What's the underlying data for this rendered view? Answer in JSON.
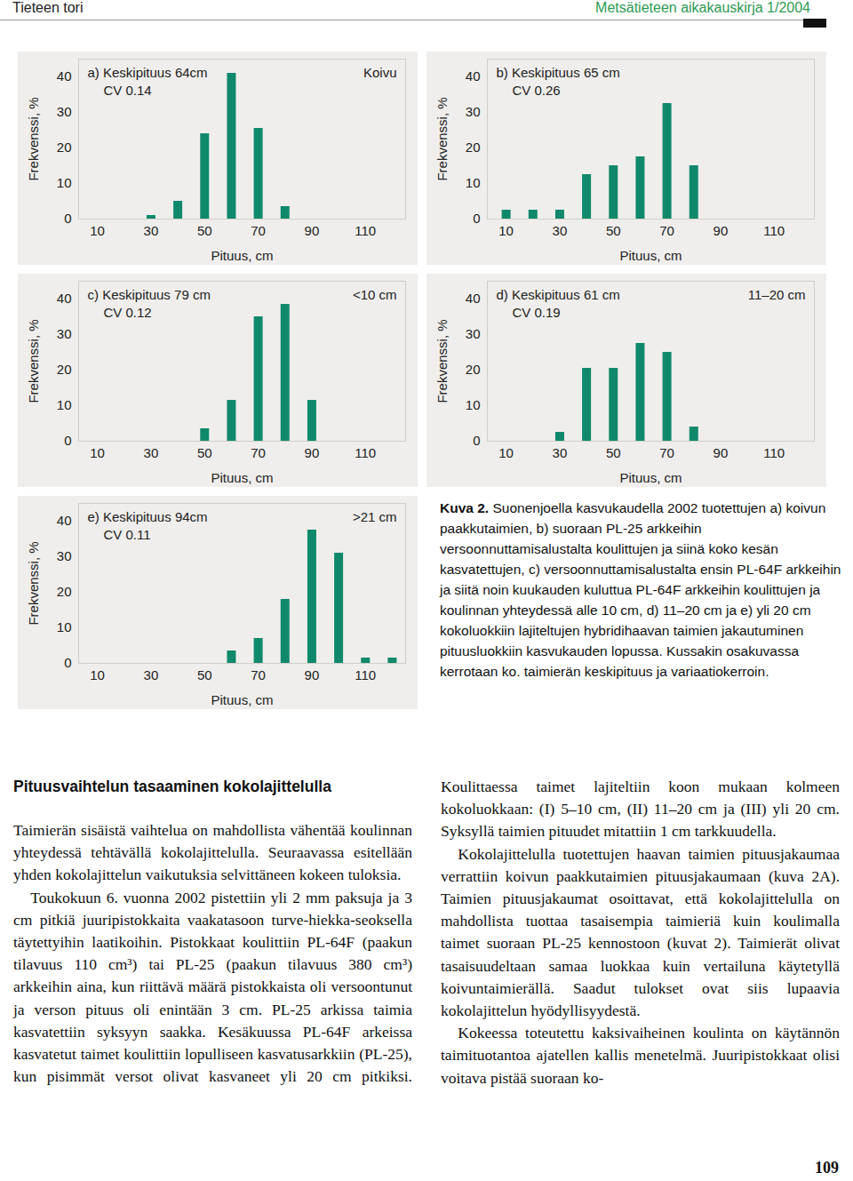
{
  "header": {
    "left": "Tieteen tori",
    "right": "Metsätieteen aikakauskirja 1/2004"
  },
  "chart_data": [
    {
      "type": "bar",
      "title": "a) Keskipituus 64cm",
      "subtitle": "CV 0.14",
      "annotation": "Koivu",
      "xlabel": "Pituus, cm",
      "ylabel": "Frekvenssi, %",
      "x": [
        30,
        40,
        50,
        60,
        70,
        80
      ],
      "values": [
        1,
        5,
        24,
        41,
        25.5,
        3.5
      ],
      "color": "#10896b",
      "xlim": [
        3,
        125
      ],
      "ylim": [
        0,
        45
      ],
      "xticks": [
        10,
        30,
        50,
        70,
        90,
        110
      ],
      "yticks": [
        0,
        10,
        20,
        30,
        40
      ]
    },
    {
      "type": "bar",
      "title": "b) Keskipituus 65 cm",
      "subtitle": "CV 0.26",
      "xlabel": "Pituus, cm",
      "ylabel": "Frekvenssi, %",
      "x": [
        10,
        20,
        30,
        40,
        50,
        60,
        70,
        80
      ],
      "values": [
        2.5,
        2.5,
        2.5,
        12.5,
        15,
        17.5,
        32.5,
        15
      ],
      "color": "#10896b",
      "xlim": [
        3,
        125
      ],
      "ylim": [
        0,
        45
      ],
      "xticks": [
        10,
        30,
        50,
        70,
        90,
        110
      ],
      "yticks": [
        0,
        10,
        20,
        30,
        40
      ]
    },
    {
      "type": "bar",
      "title": "c) Keskipituus 79 cm",
      "subtitle": "CV 0.12",
      "annotation": "<10 cm",
      "xlabel": "Pituus, cm",
      "ylabel": "Frekvenssi, %",
      "x": [
        50,
        60,
        70,
        80,
        90
      ],
      "values": [
        3.5,
        11.5,
        35,
        38.5,
        11.5
      ],
      "color": "#10896b",
      "xlim": [
        3,
        125
      ],
      "ylim": [
        0,
        45
      ],
      "xticks": [
        10,
        30,
        50,
        70,
        90,
        110
      ],
      "yticks": [
        0,
        10,
        20,
        30,
        40
      ]
    },
    {
      "type": "bar",
      "title": "d) Keskipituus 61 cm",
      "subtitle": "CV 0.19",
      "annotation": "11–20 cm",
      "xlabel": "Pituus, cm",
      "ylabel": "Frekvenssi, %",
      "x": [
        30,
        40,
        50,
        60,
        70,
        80
      ],
      "values": [
        2.5,
        20.5,
        20.5,
        27.5,
        25,
        4
      ],
      "color": "#10896b",
      "xlim": [
        3,
        125
      ],
      "ylim": [
        0,
        45
      ],
      "xticks": [
        10,
        30,
        50,
        70,
        90,
        110
      ],
      "yticks": [
        0,
        10,
        20,
        30,
        40
      ]
    },
    {
      "type": "bar",
      "title": "e) Keskipituus 94cm",
      "subtitle": "CV 0.11",
      "annotation": ">21 cm",
      "xlabel": "Pituus, cm",
      "ylabel": "Frekvenssi, %",
      "x": [
        60,
        70,
        80,
        90,
        100,
        110,
        120
      ],
      "values": [
        3.5,
        7,
        18,
        37.5,
        31,
        1.5,
        1.5
      ],
      "color": "#10896b",
      "xlim": [
        3,
        125
      ],
      "ylim": [
        0,
        45
      ],
      "xticks": [
        10,
        30,
        50,
        70,
        90,
        110
      ],
      "yticks": [
        0,
        10,
        20,
        30,
        40
      ]
    }
  ],
  "caption": {
    "label": "Kuva 2.",
    "text": "Suonenjoella kasvukaudella 2002 tuotettujen a) koivun paakkutaimien, b) suoraan PL-25 arkkeihin versoonnuttamisalustalta koulittujen ja siinä koko kesän kasvatettujen, c) versoonnuttamisalustalta ensin PL-64F arkkeihin ja siitä noin kuukauden kuluttua PL-64F arkkeihin koulittujen ja koulinnan yhteydessä alle 10 cm, d) 11–20 cm ja e) yli 20 cm kokoluokkiin lajiteltujen hybridihaavan taimien jakautuminen pituusluokkiin kasvukauden lopussa. Kussakin osakuvassa kerrotaan ko. taimierän keskipituus ja variaatiokerroin."
  },
  "article": {
    "heading": "Pituusvaihtelun tasaaminen kokolajittelulla",
    "paragraphs": [
      "Taimierän sisäistä vaihtelua on mahdollista vähentää koulinnan yhteydessä tehtävällä kokolajittelulla. Seuraavassa esitellään yhden kokolajittelun vaikutuksia selvittäneen kokeen tuloksia.",
      "Toukokuun 6. vuonna 2002 pistettiin yli 2 mm paksuja ja 3 cm pitkiä juuripistokkaita vaakatasoon turve-hiekka-seoksella täytettyihin laatikoihin. Pistokkaat koulittiin PL-64F (paakun tilavuus 110 cm³) tai PL-25 (paakun tilavuus 380 cm³) arkkeihin aina, kun riittävä määrä pistokkaista oli versoontunut ja verson pituus oli enintään 3 cm. PL-25 arkissa taimia kasvatettiin syksyyn saakka. Kesäkuussa PL-64F arkeissa kasvatetut taimet koulittiin lopulliseen kasvatusarkkiin (PL-25), kun pisimmät versot olivat kasvaneet yli 20 cm pitkiksi. Koulittaessa taimet lajiteltiin koon mukaan kolmeen kokoluokkaan: (I) 5–10 cm, (II) 11–20 cm ja (III) yli 20 cm. Syksyllä taimien pituudet mitattiin 1 cm tarkkuudella.",
      "Kokolajittelulla tuotettujen haavan taimien pituusjakaumaa verrattiin koivun paakkutaimien pituusjakaumaan (kuva 2A). Taimien pituusjakaumat osoittavat, että kokolajittelulla on mahdollista tuottaa tasaisempia taimieriä kuin koulimalla taimet suoraan PL-25 kennostoon (kuvat 2). Taimierät olivat tasaisuudeltaan samaa luokkaa kuin vertailuna käytetyllä koivuntaimierällä. Saadut tulokset ovat siis lupaavia kokolajittelun hyödyllisyydestä.",
      "Kokeessa toteutettu kaksivaiheinen koulinta on käytännön taimituotantoa ajatellen kallis menetelmä. Juuripistokkaat olisi voitava pistää suoraan ko-"
    ]
  },
  "page_number": 109
}
